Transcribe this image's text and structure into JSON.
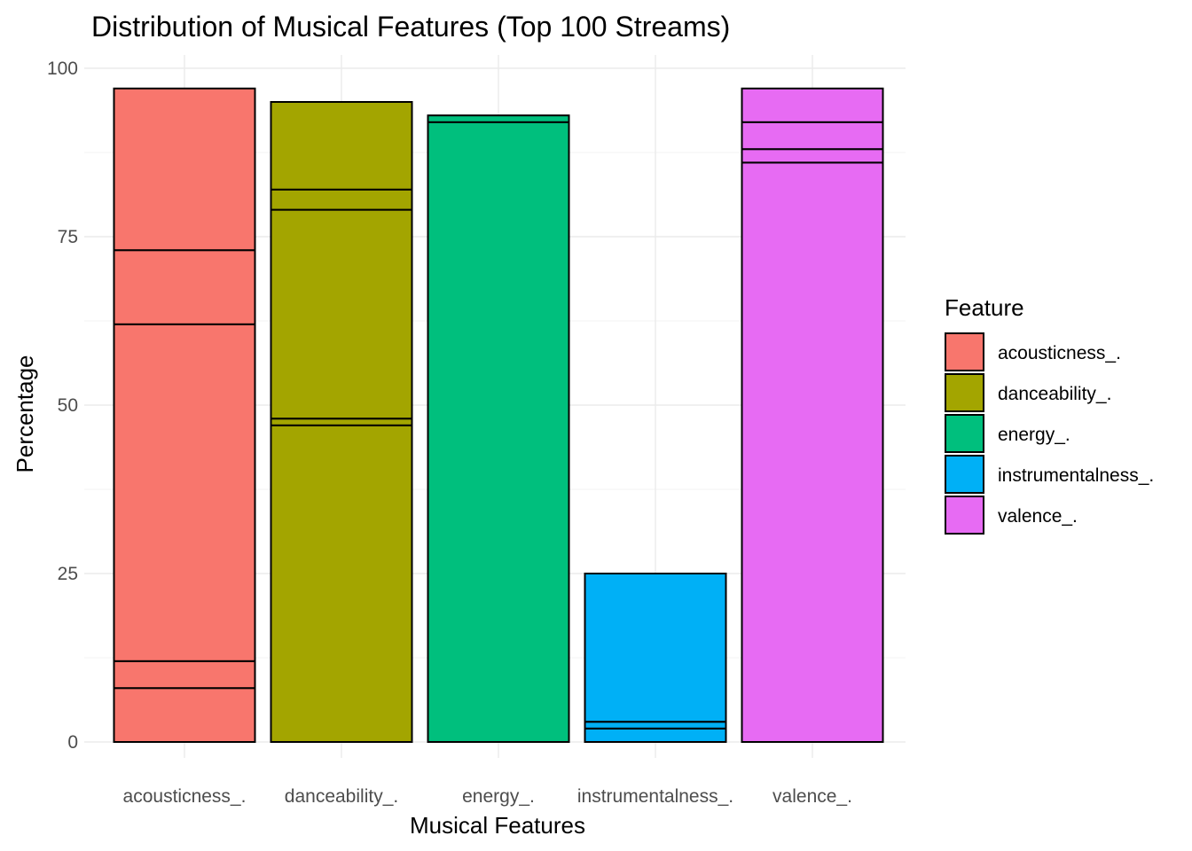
{
  "chart_data": {
    "type": "bar",
    "stacked": true,
    "title": "Distribution of Musical Features (Top 100 Streams)",
    "xlabel": "Musical Features",
    "ylabel": "Percentage",
    "ylim": [
      0,
      100
    ],
    "yticks": [
      0,
      25,
      50,
      75,
      100
    ],
    "categories": [
      "acousticness_.",
      "danceability_.",
      "energy_.",
      "instrumentalness_.",
      "valence_."
    ],
    "segment_boundaries": [
      [
        0,
        8,
        12,
        62,
        73,
        97
      ],
      [
        0,
        47,
        48,
        79,
        82,
        95
      ],
      [
        0,
        92,
        93
      ],
      [
        0,
        2,
        3,
        25
      ],
      [
        0,
        86,
        88,
        92,
        97
      ]
    ],
    "totals": [
      97,
      95,
      93,
      25,
      97
    ],
    "colors": [
      "#F8766D",
      "#A3A500",
      "#00BF7D",
      "#00B0F6",
      "#E76BF3"
    ],
    "grid": true,
    "legend": {
      "title": "Feature",
      "placement": "right",
      "entries": [
        "acousticness_.",
        "danceability_.",
        "energy_.",
        "instrumentalness_.",
        "valence_."
      ]
    }
  }
}
